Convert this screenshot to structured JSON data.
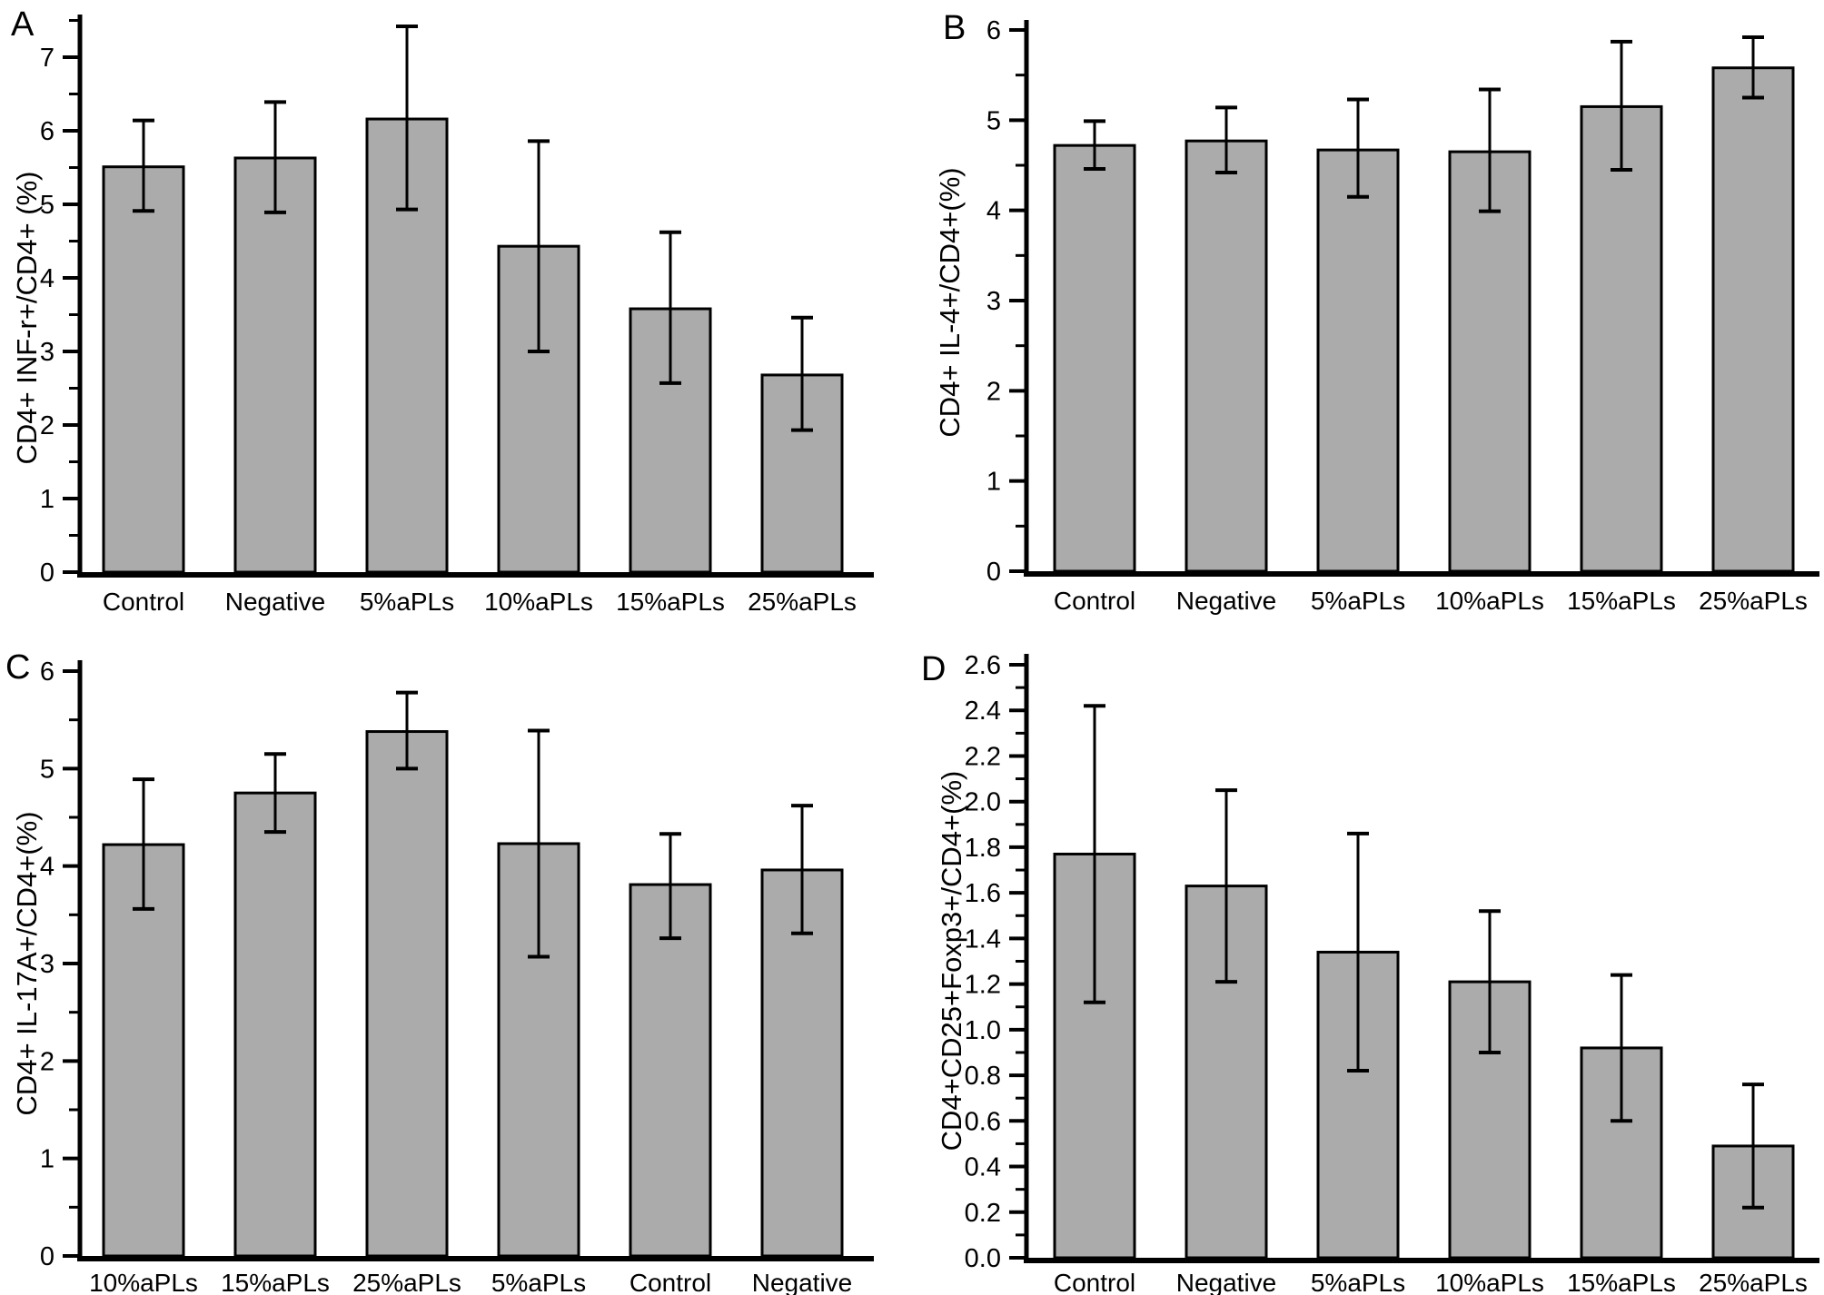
{
  "figure": {
    "background": "#ffffff",
    "bar_fill": "#ababab",
    "bar_edge": "#000000",
    "axis_color": "#000000"
  },
  "chart_data": [
    {
      "panel_label": "A",
      "type": "bar",
      "title": "",
      "xlabel": "",
      "ylabel": "CD4+ INF-r+/CD4+ (%)",
      "ylim": [
        0,
        7
      ],
      "ytick_step": 1,
      "yminor_step": 0.5,
      "ytick_decimals": 0,
      "grid": false,
      "legend": null,
      "categories": [
        "Control",
        "Negative",
        "5%aPLs",
        "10%aPLs",
        "15%aPLs",
        "25%aPLs"
      ],
      "values": [
        5.51,
        5.63,
        6.16,
        4.43,
        3.58,
        2.68
      ],
      "error_high": [
        6.14,
        6.39,
        7.42,
        5.86,
        4.62,
        3.46
      ],
      "error_low": [
        4.91,
        4.89,
        4.93,
        3.0,
        2.57,
        1.93
      ]
    },
    {
      "panel_label": "B",
      "type": "bar",
      "title": "",
      "xlabel": "",
      "ylabel": "CD4+ IL-4+/CD4+(%)",
      "ylim": [
        0,
        6
      ],
      "ytick_step": 1,
      "yminor_step": 0.5,
      "ytick_decimals": 0,
      "grid": false,
      "legend": null,
      "categories": [
        "Control",
        "Negative",
        "5%aPLs",
        "10%aPLs",
        "15%aPLs",
        "25%aPLs"
      ],
      "values": [
        4.72,
        4.77,
        4.67,
        4.65,
        5.15,
        5.58
      ],
      "error_high": [
        4.99,
        5.14,
        5.23,
        5.34,
        5.87,
        5.92
      ],
      "error_low": [
        4.46,
        4.42,
        4.15,
        3.99,
        4.45,
        5.25
      ]
    },
    {
      "panel_label": "C",
      "type": "bar",
      "title": "",
      "xlabel": "",
      "ylabel": "CD4+ IL-17A+/CD4+(%)",
      "ylim": [
        0,
        6
      ],
      "ytick_step": 1,
      "yminor_step": 0.5,
      "ytick_decimals": 0,
      "grid": false,
      "legend": null,
      "categories": [
        "10%aPLs",
        "15%aPLs",
        "25%aPLs",
        "5%aPLs",
        "Control",
        "Negative"
      ],
      "values": [
        4.22,
        4.75,
        5.38,
        4.23,
        3.81,
        3.96
      ],
      "error_high": [
        4.89,
        5.15,
        5.78,
        5.39,
        4.33,
        4.62
      ],
      "error_low": [
        3.56,
        4.35,
        5.0,
        3.07,
        3.26,
        3.31
      ]
    },
    {
      "panel_label": "D",
      "type": "bar",
      "title": "",
      "xlabel": "",
      "ylabel": "CD4+CD25+Foxp3+/CD4+(%)",
      "ylim": [
        0,
        2.6
      ],
      "ytick_step": 0.2,
      "yminor_step": 0.1,
      "ytick_decimals": 1,
      "grid": false,
      "legend": null,
      "categories": [
        "Control",
        "Negative",
        "5%aPLs",
        "10%aPLs",
        "15%aPLs",
        "25%aPLs"
      ],
      "values": [
        1.77,
        1.63,
        1.34,
        1.21,
        0.92,
        0.49
      ],
      "error_high": [
        2.42,
        2.05,
        1.86,
        1.52,
        1.24,
        0.76
      ],
      "error_low": [
        1.12,
        1.21,
        0.82,
        0.9,
        0.6,
        0.22
      ]
    }
  ]
}
